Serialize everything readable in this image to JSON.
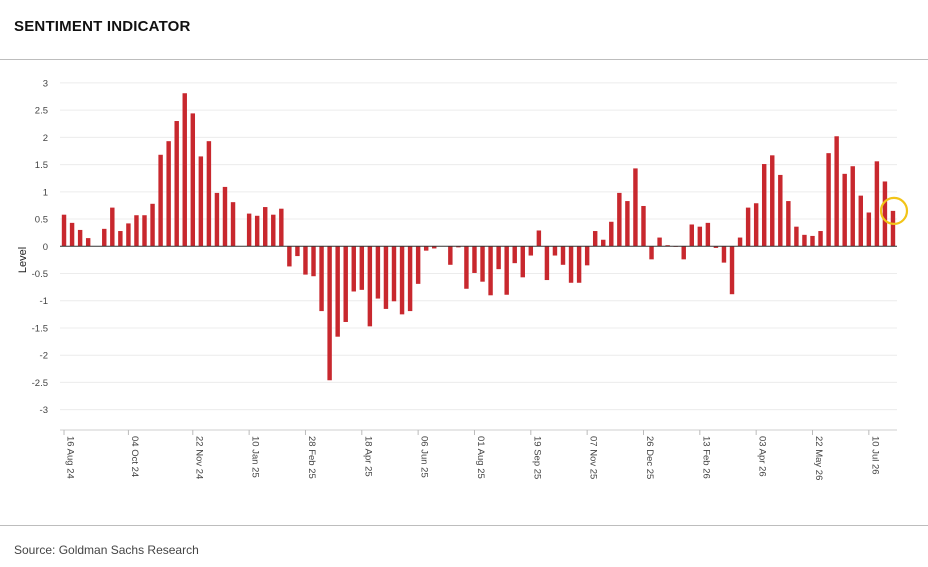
{
  "header": {
    "title": "SENTIMENT INDICATOR"
  },
  "footer": {
    "source": "Source: Goldman Sachs Research"
  },
  "highlight": {
    "color": "#f2c418",
    "index": 62
  },
  "chart_data": {
    "type": "bar",
    "ylabel": "Level",
    "ylim": [
      -3.3,
      3.2
    ],
    "yticks": [
      3,
      2.5,
      2,
      1.5,
      1,
      0.5,
      0,
      -0.5,
      -1,
      -1.5,
      -2,
      -2.5,
      -3
    ],
    "bar_color": "#c8282e",
    "grid": true,
    "legend": "none",
    "xtick_labels": [
      {
        "i": 0,
        "label": "16 Aug 24"
      },
      {
        "i": 8,
        "label": "04 Oct 24"
      },
      {
        "i": 16,
        "label": "22 Nov 24"
      },
      {
        "i": 23,
        "label": "10 Jan 25"
      },
      {
        "i": 30,
        "label": "28 Feb 25"
      },
      {
        "i": 37,
        "label": "18 Apr 25"
      },
      {
        "i": 44,
        "label": "06 Jun 25"
      },
      {
        "i": 51,
        "label": "01 Aug 25"
      },
      {
        "i": 58,
        "label": "19 Sep 25"
      },
      {
        "i": 65,
        "label": "07 Nov 25"
      },
      {
        "i": 72,
        "label": "26 Dec 25"
      },
      {
        "i": 79,
        "label": "13 Feb 26"
      },
      {
        "i": 86,
        "label": "03 Apr 26"
      },
      {
        "i": 93,
        "label": "22 May 26"
      },
      {
        "i": 100,
        "label": "10 Jul 26"
      }
    ],
    "values": [
      0.58,
      0.43,
      0.3,
      0.15,
      0,
      0.32,
      0.71,
      0.28,
      0.42,
      0.57,
      0.57,
      0.78,
      1.68,
      1.93,
      2.3,
      2.81,
      2.44,
      1.65,
      1.93,
      0.98,
      1.09,
      0.81,
      0,
      0.6,
      0.56,
      0.72,
      0.58,
      0.69,
      -0.37,
      -0.18,
      -0.52,
      -0.55,
      -1.19,
      -2.46,
      -1.66,
      -1.39,
      -0.83,
      -0.8,
      -1.47,
      -0.96,
      -1.15,
      -1.01,
      -1.25,
      -1.19,
      -0.69,
      -0.08,
      -0.04,
      0,
      -0.34,
      -0.02,
      -0.78,
      -0.49,
      -0.65,
      -0.9,
      -0.42,
      -0.89,
      -0.31,
      -0.57,
      -0.17,
      0.29,
      -0.62,
      -0.17,
      -0.34,
      -0.67,
      -0.67,
      -0.35,
      0.28,
      0.12,
      0.45,
      0.98,
      0.83,
      1.43,
      0.74,
      -0.24,
      0.16,
      0.02,
      -0.01,
      -0.24,
      0.4,
      0.36,
      0.43,
      -0.03,
      -0.3,
      -0.88,
      0.16,
      0.71,
      0.79,
      1.51,
      1.67,
      1.31,
      0.83,
      0.36,
      0.21,
      0.19,
      0.28,
      1.71,
      2.02,
      1.33,
      1.47,
      0.93,
      0.62,
      1.56,
      1.19,
      0.65
    ]
  }
}
